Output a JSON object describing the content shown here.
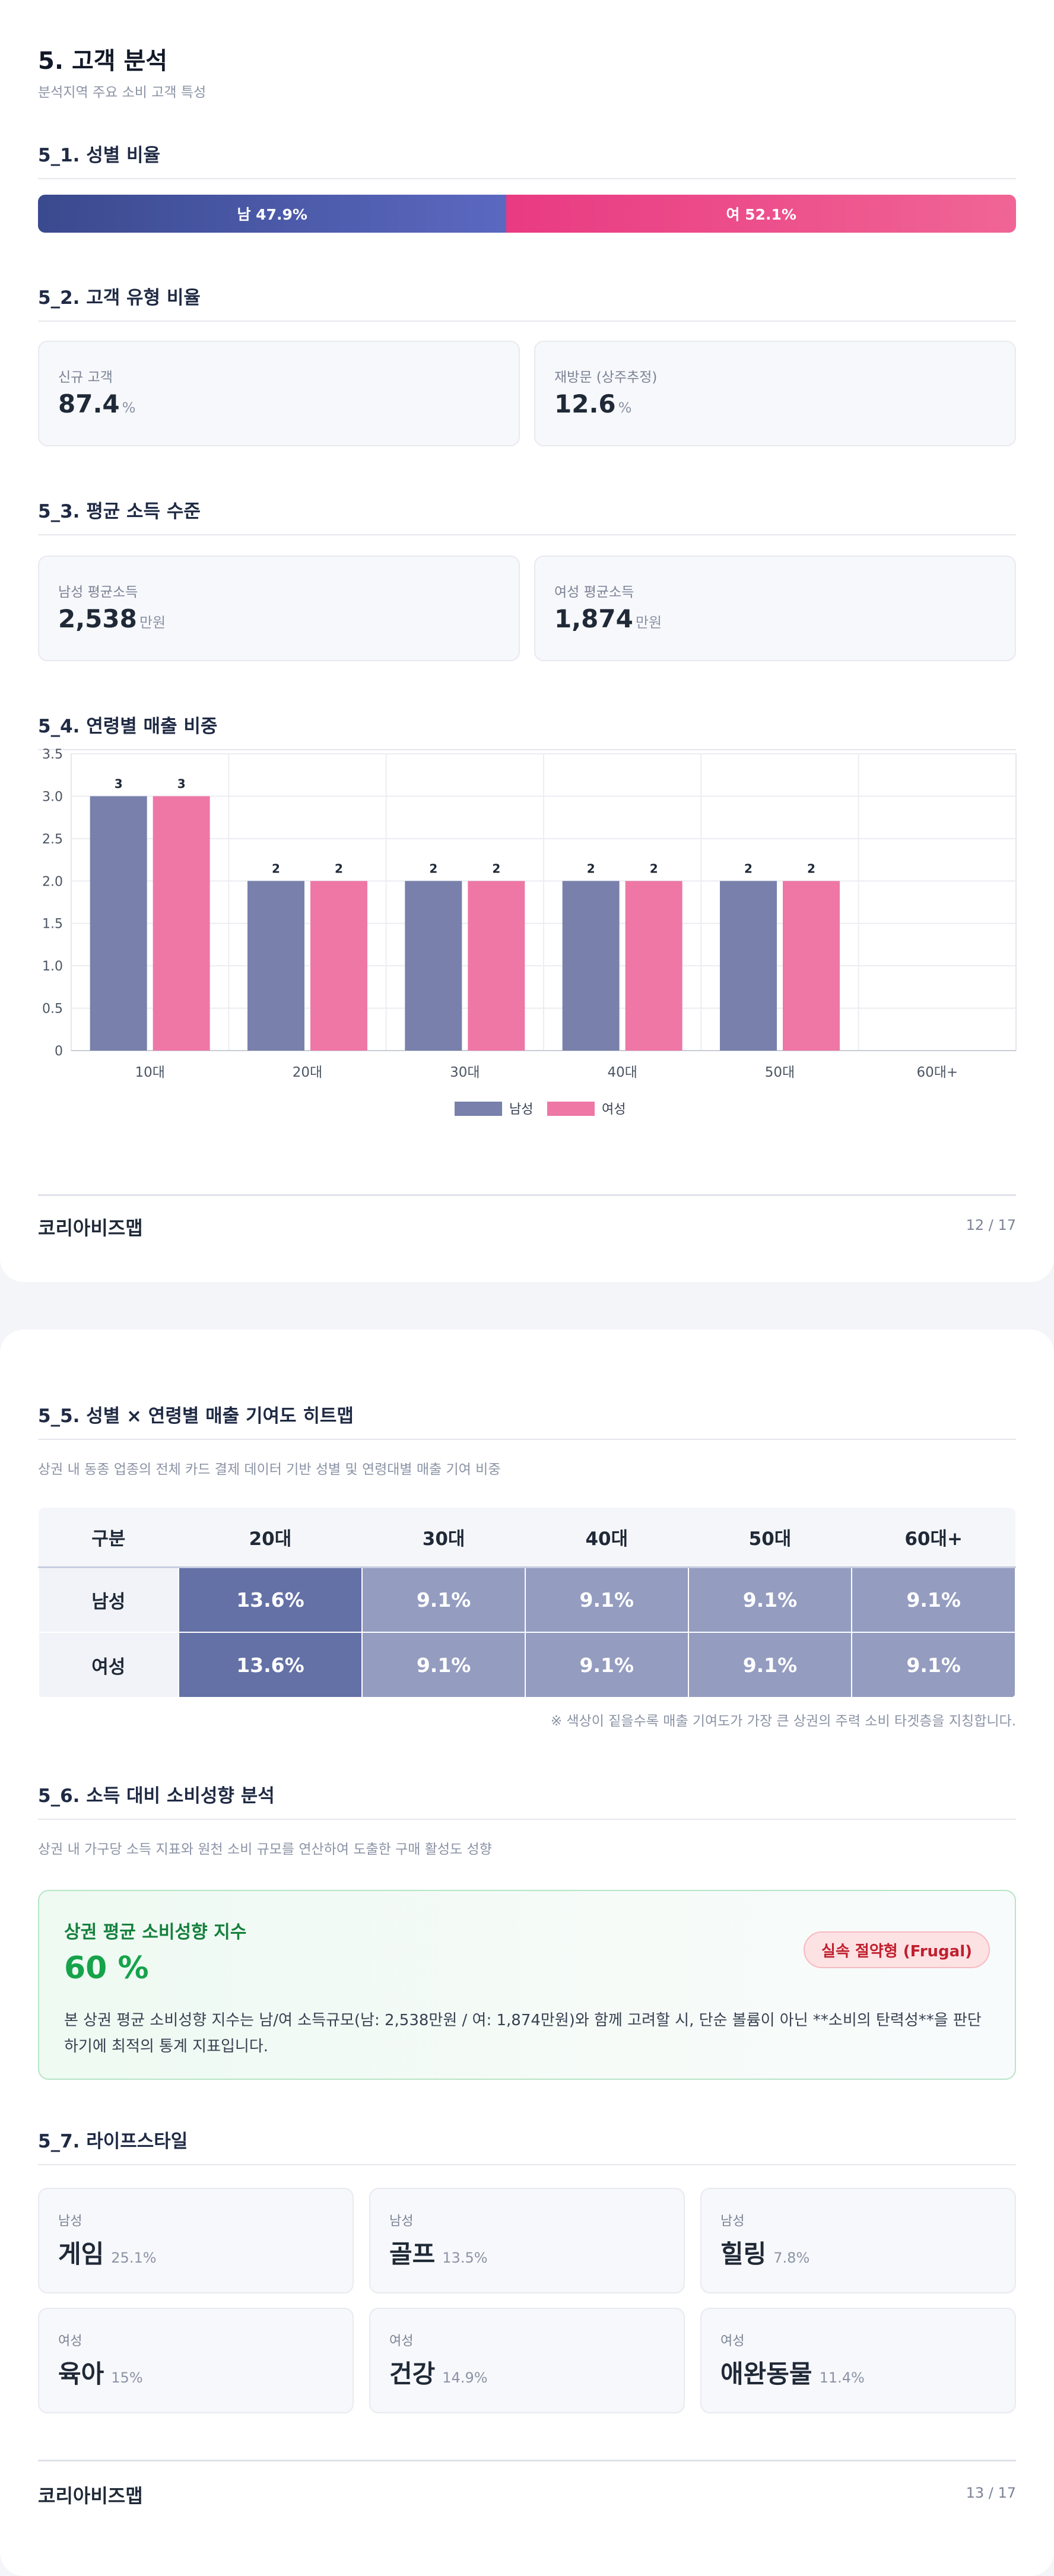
{
  "page1": {
    "title": "5. 고객 분석",
    "subtitle": "분석지역 주요 소비 고객 특성",
    "gender": {
      "heading": "5_1. 성별 비율",
      "male_label": "남 47.9%",
      "female_label": "여 52.1%",
      "male_pct": 47.9,
      "female_pct": 52.1,
      "male_color": "#4b59a8",
      "female_color": "#ec4f8c"
    },
    "customer_type": {
      "heading": "5_2. 고객 유형 비율",
      "cards": [
        {
          "label": "신규 고객",
          "value": "87.4",
          "unit": "%"
        },
        {
          "label": "재방문 (상주추정)",
          "value": "12.6",
          "unit": "%"
        }
      ]
    },
    "income": {
      "heading": "5_3. 평균 소득 수준",
      "cards": [
        {
          "label": "남성 평균소득",
          "value": "2,538",
          "unit": "만원"
        },
        {
          "label": "여성 평균소득",
          "value": "1,874",
          "unit": "만원"
        }
      ]
    },
    "age_sales": {
      "heading": "5_4. 연령별 매출 비중"
    },
    "footer": {
      "brand": "코리아비즈맵",
      "page": "12 / 17"
    }
  },
  "chart_data": {
    "type": "bar",
    "title": "",
    "categories": [
      "10대",
      "20대",
      "30대",
      "40대",
      "50대",
      "60대+"
    ],
    "series": [
      {
        "name": "남성",
        "values": [
          3,
          2,
          2,
          2,
          2,
          null
        ],
        "color": "#7880ab"
      },
      {
        "name": "여성",
        "values": [
          3,
          2,
          2,
          2,
          2,
          null
        ],
        "color": "#ee77a6"
      }
    ],
    "data_labels": [
      "3",
      "3",
      "2",
      "2",
      "2",
      "2",
      "2",
      "2",
      "2",
      "2"
    ],
    "y_ticks": [
      "0",
      "0.5",
      "1.0",
      "1.5",
      "2.0",
      "2.5",
      "3.0",
      "3.5"
    ],
    "ylim": [
      0,
      3.5
    ],
    "grid": true,
    "legend": "bottom-center"
  },
  "page2": {
    "heatmap": {
      "heading": "5_5. 성별 × 연령별 매출 기여도 히트맵",
      "subtitle": "상권 내 동종 업종의 전체 카드 결제 데이터 기반 성별 및 연령대별 매출 기여 비중",
      "columns": [
        "구분",
        "20대",
        "30대",
        "40대",
        "50대",
        "60대+"
      ],
      "rows": [
        {
          "label": "남성",
          "cells": [
            "13.6%",
            "9.1%",
            "9.1%",
            "9.1%",
            "9.1%"
          ]
        },
        {
          "label": "여성",
          "cells": [
            "13.6%",
            "9.1%",
            "9.1%",
            "9.1%",
            "9.1%"
          ]
        }
      ],
      "note": "※ 색상이 짙을수록 매출 기여도가 가장 큰 상권의 주력 소비 타겟층을 지칭합니다.",
      "high_color": "#6471a6",
      "mid_color": "#949cc0"
    },
    "spending": {
      "heading": "5_6. 소득 대비 소비성향 분석",
      "subtitle": "상권 내 가구당 소득 지표와 원천 소비 규모를 연산하여 도출한 구매 활성도 성향",
      "box_title": "상권 평균 소비성향 지수",
      "value": "60 %",
      "badge": "실속 절약형 (Frugal)",
      "description": "본 상권 평균 소비성향 지수는 남/여 소득규모(남: 2,538만원 / 여: 1,874만원)와 함께 고려할 시, 단순 볼륨이 아닌 **소비의 탄력성**을 판단하기에 최적의 통계 지표입니다."
    },
    "lifestyle": {
      "heading": "5_7. 라이프스타일",
      "items": [
        {
          "gender": "남성",
          "name": "게임",
          "pct": "25.1%"
        },
        {
          "gender": "남성",
          "name": "골프",
          "pct": "13.5%"
        },
        {
          "gender": "남성",
          "name": "힐링",
          "pct": "7.8%"
        },
        {
          "gender": "여성",
          "name": "육아",
          "pct": "15%"
        },
        {
          "gender": "여성",
          "name": "건강",
          "pct": "14.9%"
        },
        {
          "gender": "여성",
          "name": "애완동물",
          "pct": "11.4%"
        }
      ]
    },
    "footer": {
      "brand": "코리아비즈맵",
      "page": "13 / 17"
    }
  }
}
